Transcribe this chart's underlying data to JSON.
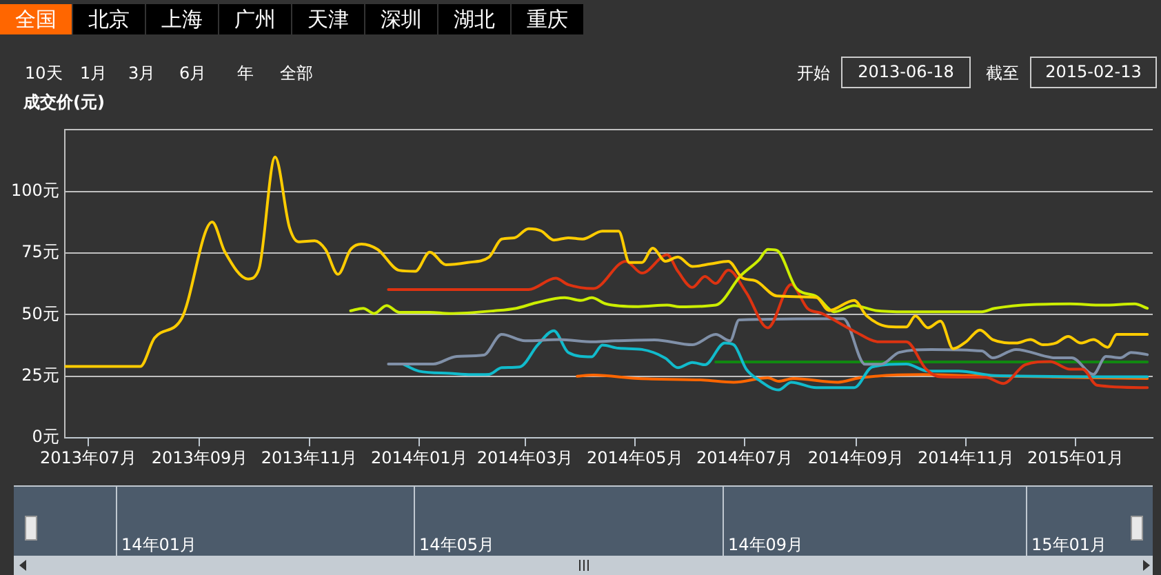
{
  "chart_data": {
    "type": "line",
    "ylabel": "成交价(元)",
    "annotations": [
      "全国",
      "北京",
      "上海",
      "广州",
      "天津",
      "深圳",
      "湖北",
      "重庆",
      "10天",
      "1月",
      "3月",
      "6月",
      "年",
      "全部",
      "开始",
      "2013-06-18",
      "截至",
      "2015-02-13",
      "14年01月",
      "14年05月",
      "14年09月",
      "15年01月"
    ],
    "xlim": [
      "2013-06-18",
      "2015-02-13"
    ],
    "xticks": [
      {
        "value": "2013-07-01",
        "label": "2013年07月"
      },
      {
        "value": "2013-09-01",
        "label": "2013年09月"
      },
      {
        "value": "2013-11-01",
        "label": "2013年11月"
      },
      {
        "value": "2014-01-01",
        "label": "2014年01月"
      },
      {
        "value": "2014-03-01",
        "label": "2014年03月"
      },
      {
        "value": "2014-05-01",
        "label": "2014年05月"
      },
      {
        "value": "2014-07-01",
        "label": "2014年07月"
      },
      {
        "value": "2014-09-01",
        "label": "2014年09月"
      },
      {
        "value": "2014-11-01",
        "label": "2014年11月"
      },
      {
        "value": "2015-01-01",
        "label": "2015年01月"
      }
    ],
    "ylim": [
      0,
      125
    ],
    "yticks": [
      {
        "value": 0,
        "label": "0元"
      },
      {
        "value": 25,
        "label": "25元"
      },
      {
        "value": 50,
        "label": "50元"
      },
      {
        "value": 75,
        "label": "75元"
      },
      {
        "value": 100,
        "label": "100元"
      },
      {
        "value": 125,
        "label": null
      }
    ],
    "grid": "y",
    "marker": "none",
    "series": [
      {
        "color": "#ffcc00",
        "x": [
          "2013-06-18",
          "2013-07-30",
          "2013-08-07",
          "2013-08-22",
          "2013-09-08",
          "2013-09-15",
          "2013-09-28",
          "2013-10-04",
          "2013-10-13",
          "2013-10-21",
          "2013-10-26",
          "2013-11-04",
          "2013-11-10",
          "2013-11-17",
          "2013-11-24",
          "2013-11-30",
          "2013-12-09",
          "2013-12-21",
          "2013-12-30",
          "2014-01-07",
          "2014-01-16",
          "2014-01-28",
          "2014-02-09",
          "2014-02-16",
          "2014-02-23",
          "2014-03-03",
          "2014-03-10",
          "2014-03-17",
          "2014-03-25",
          "2014-04-02",
          "2014-04-13",
          "2014-04-22",
          "2014-04-28",
          "2014-05-05",
          "2014-05-11",
          "2014-05-18",
          "2014-05-25",
          "2014-06-02",
          "2014-06-12",
          "2014-06-22",
          "2014-06-30",
          "2014-07-07",
          "2014-07-19",
          "2014-08-10",
          "2014-08-17",
          "2014-08-31",
          "2014-09-07",
          "2014-09-19",
          "2014-09-29",
          "2014-10-04",
          "2014-10-11",
          "2014-10-18",
          "2014-10-25",
          "2014-11-01",
          "2014-11-09",
          "2014-11-16",
          "2014-11-29",
          "2014-12-07",
          "2014-12-14",
          "2014-12-21",
          "2014-12-28",
          "2015-01-04",
          "2015-01-11",
          "2015-01-19",
          "2015-01-24",
          "2015-02-10"
        ],
        "values": [
          29,
          29,
          40.6,
          48.4,
          87.6,
          75.6,
          64.5,
          68.5,
          114,
          85.4,
          79.6,
          80,
          76.5,
          66.4,
          76.5,
          78.7,
          76.5,
          68,
          67.6,
          75.4,
          70.3,
          71.2,
          73.4,
          80.7,
          81.2,
          84.9,
          84,
          80.3,
          81.2,
          80.7,
          83.9,
          83.9,
          71.2,
          71.2,
          77,
          71.7,
          73.4,
          69.6,
          70.6,
          71.7,
          64.8,
          63.8,
          57.6,
          57,
          51.7,
          55.8,
          49.5,
          45.2,
          45,
          49.5,
          44.7,
          47.4,
          36.2,
          38.9,
          43.8,
          39.9,
          38.5,
          39.9,
          37.8,
          38.5,
          41.2,
          38.5,
          39.9,
          36.8,
          42,
          42
        ]
      },
      {
        "color": "#ccee00",
        "x": [
          "2013-11-24",
          "2013-12-01",
          "2013-12-07",
          "2013-12-14",
          "2013-12-21",
          "2014-01-07",
          "2014-01-18",
          "2014-02-12",
          "2014-02-24",
          "2014-03-07",
          "2014-03-23",
          "2014-04-01",
          "2014-04-07",
          "2014-04-15",
          "2014-05-03",
          "2014-05-19",
          "2014-05-26",
          "2014-06-15",
          "2014-06-29",
          "2014-07-09",
          "2014-07-14",
          "2014-07-19",
          "2014-07-30",
          "2014-08-10",
          "2014-08-20",
          "2014-08-31",
          "2014-09-12",
          "2014-09-29",
          "2014-10-24",
          "2014-11-10",
          "2014-11-17",
          "2014-12-29",
          "2015-01-16",
          "2015-02-03",
          "2015-02-10"
        ],
        "values": [
          51.6,
          52.6,
          50.5,
          53.7,
          51,
          51,
          50.5,
          51.6,
          52.6,
          54.8,
          56.9,
          55.8,
          56.9,
          54.4,
          53.3,
          53.9,
          53.2,
          53.9,
          65.9,
          72.2,
          76.5,
          76.1,
          60.6,
          57.4,
          51.2,
          53.7,
          51.7,
          51.2,
          51.2,
          51.2,
          52.6,
          54.4,
          53.9,
          54.4,
          52.6
        ]
      },
      {
        "color": "#dd3311",
        "x": [
          "2013-12-15",
          "2014-03-03",
          "2014-03-18",
          "2014-03-25",
          "2014-04-08",
          "2014-04-26",
          "2014-05-05",
          "2014-05-19",
          "2014-05-25",
          "2014-06-02",
          "2014-06-09",
          "2014-06-15",
          "2014-06-22",
          "2014-07-02",
          "2014-07-14",
          "2014-07-27",
          "2014-08-05",
          "2014-08-13",
          "2014-08-31",
          "2014-09-14",
          "2014-09-29",
          "2014-10-10",
          "2014-10-18",
          "2014-11-12",
          "2014-11-22",
          "2014-12-04",
          "2014-12-18",
          "2014-12-29",
          "2015-01-05",
          "2015-01-13",
          "2015-02-10"
        ],
        "values": [
          60.2,
          60.2,
          64.8,
          62.2,
          60.6,
          71.7,
          66.9,
          74.3,
          67.6,
          61.1,
          65.5,
          62.7,
          68.1,
          59,
          44.7,
          62.3,
          52.6,
          50.5,
          43.3,
          39,
          39,
          27.9,
          24.8,
          24.6,
          22.1,
          29.7,
          31,
          27.9,
          27.9,
          21.4,
          20.4
        ]
      },
      {
        "color": "#8090a8",
        "x": [
          "2013-12-15",
          "2014-01-09",
          "2014-01-22",
          "2014-02-06",
          "2014-02-16",
          "2014-03-01",
          "2014-03-20",
          "2014-04-08",
          "2014-04-20",
          "2014-05-12",
          "2014-06-02",
          "2014-06-15",
          "2014-06-23",
          "2014-06-28",
          "2014-08-25",
          "2014-09-06",
          "2014-09-15",
          "2014-09-25",
          "2014-10-13",
          "2014-11-10",
          "2014-11-16",
          "2014-11-29",
          "2014-12-21",
          "2014-12-30",
          "2015-01-11",
          "2015-01-18",
          "2015-01-26",
          "2015-02-01",
          "2015-02-10"
        ],
        "values": [
          30,
          30,
          33.1,
          33.6,
          42,
          39.4,
          39.9,
          39,
          39.4,
          39.8,
          37.8,
          42,
          39.4,
          47.9,
          48.4,
          29.9,
          29.9,
          34.7,
          35.9,
          35.3,
          32.5,
          35.9,
          32.5,
          32.5,
          25.8,
          33.1,
          32.5,
          34.7,
          33.8
        ]
      },
      {
        "color": "#11bbcc",
        "x": [
          "2013-12-23",
          "2014-01-01",
          "2014-01-18",
          "2014-01-30",
          "2014-02-09",
          "2014-02-16",
          "2014-02-26",
          "2014-03-08",
          "2014-03-17",
          "2014-03-25",
          "2014-04-07",
          "2014-04-13",
          "2014-04-22",
          "2014-05-05",
          "2014-05-18",
          "2014-05-25",
          "2014-06-02",
          "2014-06-09",
          "2014-06-20",
          "2014-06-25",
          "2014-07-02",
          "2014-07-09",
          "2014-07-20",
          "2014-07-27",
          "2014-08-10",
          "2014-08-31",
          "2014-09-10",
          "2014-09-29",
          "2014-10-11",
          "2014-10-28",
          "2014-11-17",
          "2015-02-10"
        ],
        "values": [
          30,
          27.1,
          26.2,
          25.7,
          25.8,
          28.5,
          28.8,
          37.7,
          43.5,
          34.7,
          32.9,
          37.7,
          36.4,
          35.9,
          32.4,
          28.5,
          30.6,
          29.7,
          38.5,
          37.8,
          27.9,
          23.5,
          19.5,
          22.6,
          20.4,
          20.4,
          28.8,
          30,
          27.1,
          27.1,
          25.3,
          24.8
        ]
      },
      {
        "color": "#ff6600",
        "x": [
          "2014-03-30",
          "2014-04-08",
          "2014-05-03",
          "2014-06-08",
          "2014-06-25",
          "2014-07-14",
          "2014-07-20",
          "2014-07-28",
          "2014-08-22",
          "2014-09-03",
          "2014-10-08",
          "2014-11-03",
          "2015-02-10"
        ],
        "values": [
          25,
          25.5,
          24.1,
          23.5,
          22.6,
          24.4,
          23,
          24.1,
          22.6,
          24.4,
          25.7,
          25.3,
          24.1
        ]
      },
      {
        "color": "#118811",
        "x": [
          "2014-06-15",
          "2015-02-10"
        ],
        "values": [
          30.8,
          30.8
        ]
      }
    ]
  }
}
